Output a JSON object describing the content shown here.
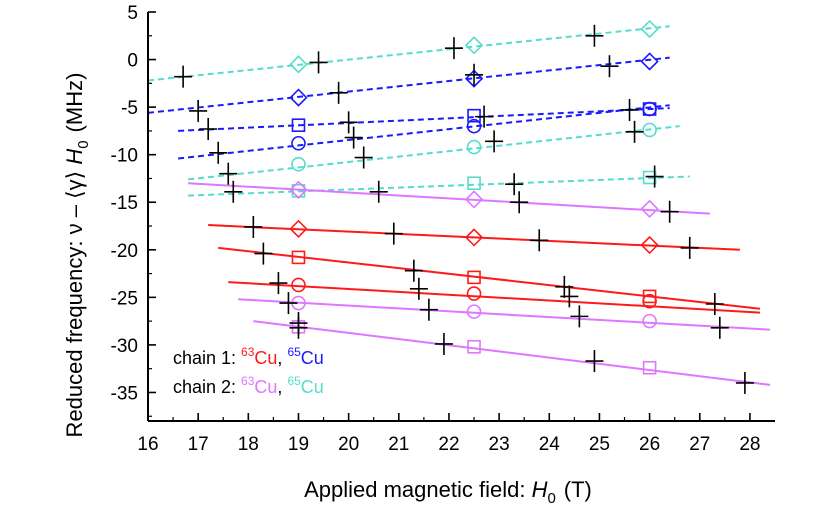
{
  "chart_data": {
    "type": "scatter",
    "xlabel": {
      "text": "Applied magnetic field: ",
      "var": "H",
      "sub": "0",
      "unit": "(T)"
    },
    "ylabel": {
      "pre": "Reduced frequency:  ν – ⟨γ⟩ ",
      "var": "H",
      "sub": "0",
      "unit": "(MHz)"
    },
    "xlim": [
      16,
      28.5
    ],
    "ylim": [
      -38,
      5
    ],
    "xticks": [
      16,
      17,
      18,
      19,
      20,
      21,
      22,
      23,
      24,
      25,
      26,
      27,
      28
    ],
    "yticks": [
      5,
      0,
      -5,
      -10,
      -15,
      -20,
      -25,
      -30,
      -35
    ],
    "colors": {
      "chain1_63Cu": "#ff1a1a",
      "chain1_65Cu": "#1a1aff",
      "chain2_63Cu": "#dd77ff",
      "chain2_65Cu": "#55ddcc",
      "crosses": "#000000"
    },
    "legend": [
      {
        "prefix": "chain 1: ",
        "iso1": "63",
        "el1": "Cu",
        "sep": ", ",
        "iso2": "65",
        "el2": "Cu",
        "color1": "chain1_63Cu",
        "color2": "chain1_65Cu"
      },
      {
        "prefix": "chain 2: ",
        "iso1": "63",
        "el1": "Cu",
        "sep": ", ",
        "iso2": "65",
        "el2": "Cu",
        "color1": "chain2_63Cu",
        "color2": "chain2_65Cu"
      }
    ],
    "series": [
      {
        "name": "chain2-65Cu-diamond",
        "color": "chain2_65Cu",
        "dashed": true,
        "marker": "diamond",
        "line": [
          16,
          -2.2,
          26.4,
          3.5
        ],
        "points": [
          [
            19,
            -0.5
          ],
          [
            22.5,
            1.5
          ],
          [
            26,
            3.2
          ]
        ]
      },
      {
        "name": "chain1-65Cu-diamond",
        "color": "chain1_65Cu",
        "dashed": true,
        "marker": "diamond",
        "line": [
          16,
          -5.6,
          26.4,
          0.2
        ],
        "points": [
          [
            19,
            -4.0
          ],
          [
            22.5,
            -2.0
          ],
          [
            26,
            -0.2
          ]
        ]
      },
      {
        "name": "chain1-65Cu-square",
        "color": "chain1_65Cu",
        "dashed": true,
        "marker": "square",
        "line": [
          16.6,
          -7.5,
          26.4,
          -5.1
        ],
        "points": [
          [
            19,
            -6.9
          ],
          [
            22.5,
            -5.9
          ],
          [
            26,
            -5.2
          ]
        ]
      },
      {
        "name": "chain1-65Cu-circle",
        "color": "chain1_65Cu",
        "dashed": true,
        "marker": "circle",
        "line": [
          16.6,
          -10.4,
          26.4,
          -4.8
        ],
        "points": [
          [
            19,
            -8.8
          ],
          [
            22.5,
            -7.0
          ],
          [
            26,
            -5.2
          ]
        ]
      },
      {
        "name": "chain2-65Cu-circle",
        "color": "chain2_65Cu",
        "dashed": true,
        "marker": "circle",
        "line": [
          16.8,
          -12.6,
          26.6,
          -7.0
        ],
        "points": [
          [
            19,
            -11.0
          ],
          [
            22.5,
            -9.2
          ],
          [
            26,
            -7.4
          ]
        ]
      },
      {
        "name": "chain2-65Cu-square",
        "color": "chain2_65Cu",
        "dashed": true,
        "marker": "square",
        "line": [
          16.8,
          -14.3,
          26.8,
          -12.3
        ],
        "points": [
          [
            19,
            -13.8
          ],
          [
            22.5,
            -13.0
          ],
          [
            26,
            -12.4
          ]
        ]
      },
      {
        "name": "chain2-63Cu-diamond",
        "color": "chain2_63Cu",
        "dashed": false,
        "marker": "diamond",
        "line": [
          16.8,
          -13.0,
          27.2,
          -16.2
        ],
        "points": [
          [
            19,
            -13.7
          ],
          [
            22.5,
            -14.7
          ],
          [
            26,
            -15.7
          ]
        ]
      },
      {
        "name": "chain1-63Cu-diamond",
        "color": "chain1_63Cu",
        "dashed": false,
        "marker": "diamond",
        "line": [
          17.2,
          -17.4,
          27.8,
          -20.0
        ],
        "points": [
          [
            19,
            -17.8
          ],
          [
            22.5,
            -18.7
          ],
          [
            26,
            -19.5
          ]
        ]
      },
      {
        "name": "chain1-63Cu-square",
        "color": "chain1_63Cu",
        "dashed": false,
        "marker": "square",
        "line": [
          17.4,
          -19.8,
          28.2,
          -26.2
        ],
        "points": [
          [
            19,
            -20.8
          ],
          [
            22.5,
            -22.9
          ],
          [
            26,
            -24.9
          ]
        ]
      },
      {
        "name": "chain1-63Cu-circle",
        "color": "chain1_63Cu",
        "dashed": false,
        "marker": "circle",
        "line": [
          17.6,
          -23.4,
          28.2,
          -26.6
        ],
        "points": [
          [
            19,
            -23.7
          ],
          [
            22.5,
            -24.6
          ],
          [
            26,
            -25.4
          ]
        ]
      },
      {
        "name": "chain2-63Cu-circle",
        "color": "chain2_63Cu",
        "dashed": false,
        "marker": "circle",
        "line": [
          17.8,
          -25.2,
          28.4,
          -28.4
        ],
        "points": [
          [
            19,
            -25.6
          ],
          [
            22.5,
            -26.5
          ],
          [
            26,
            -27.5
          ]
        ]
      },
      {
        "name": "chain2-63Cu-square",
        "color": "chain2_63Cu",
        "dashed": false,
        "marker": "square",
        "line": [
          18.1,
          -27.5,
          28.4,
          -34.2
        ],
        "points": [
          [
            19,
            -28.1
          ],
          [
            22.5,
            -30.2
          ],
          [
            26,
            -32.4
          ]
        ]
      }
    ],
    "crosses": [
      [
        16.7,
        -1.8
      ],
      [
        19.4,
        -0.3
      ],
      [
        22.1,
        1.2
      ],
      [
        24.9,
        2.5
      ],
      [
        17.0,
        -5.4
      ],
      [
        19.8,
        -3.5
      ],
      [
        22.5,
        -1.6
      ],
      [
        25.2,
        -0.7
      ],
      [
        17.2,
        -7.3
      ],
      [
        20.0,
        -6.6
      ],
      [
        22.7,
        -6.0
      ],
      [
        25.6,
        -5.3
      ],
      [
        17.4,
        -9.8
      ],
      [
        20.1,
        -8.2
      ],
      [
        22.9,
        -8.6
      ],
      [
        25.7,
        -7.6
      ],
      [
        17.6,
        -12.0
      ],
      [
        20.3,
        -10.3
      ],
      [
        23.3,
        -13.1
      ],
      [
        26.1,
        -12.3
      ],
      [
        17.7,
        -13.9
      ],
      [
        20.6,
        -13.9
      ],
      [
        23.4,
        -15.0
      ],
      [
        26.4,
        -16.0
      ],
      [
        18.1,
        -17.6
      ],
      [
        20.9,
        -18.3
      ],
      [
        23.8,
        -19.0
      ],
      [
        26.8,
        -19.8
      ],
      [
        18.3,
        -20.4
      ],
      [
        21.3,
        -22.2
      ],
      [
        24.3,
        -23.9
      ],
      [
        27.3,
        -25.7
      ],
      [
        18.6,
        -23.5
      ],
      [
        21.4,
        -24.1
      ],
      [
        24.4,
        -24.9
      ],
      [
        27.4,
        -28.2
      ],
      [
        18.8,
        -25.6
      ],
      [
        21.6,
        -26.3
      ],
      [
        24.6,
        -27.0
      ],
      [
        19.0,
        -27.7
      ],
      [
        19.0,
        -28.2
      ],
      [
        21.9,
        -29.9
      ],
      [
        24.9,
        -31.7
      ],
      [
        27.9,
        -34.0
      ]
    ]
  }
}
